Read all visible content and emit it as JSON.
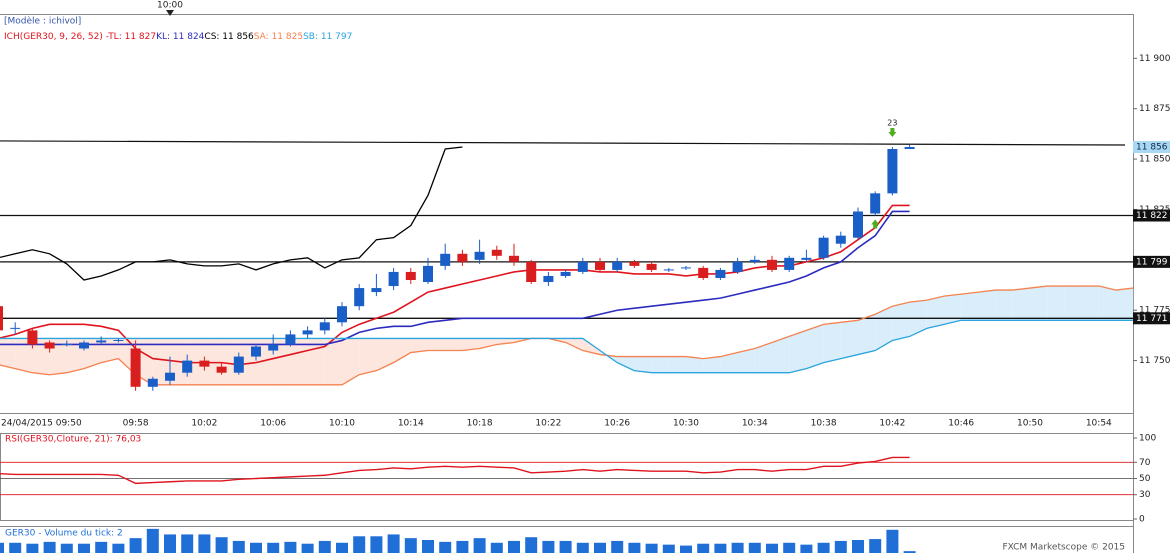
{
  "chart_data": [
    {
      "type": "candlestick",
      "model": "[Modèle : ichivol]",
      "indicator": "ICH(GER30, 9, 26, 52) -",
      "categories": [
        "24/04/2015 09:50",
        null,
        null,
        null,
        null,
        null,
        null,
        null,
        "09:58",
        null,
        null,
        null,
        "10:02",
        null,
        null,
        null,
        "10:06",
        null,
        null,
        null,
        "10:10",
        null,
        null,
        null,
        "10:14",
        null,
        null,
        null,
        "10:18",
        null,
        null,
        null,
        "10:22",
        null,
        null,
        null,
        "10:26",
        null,
        null,
        null,
        "10:30",
        null,
        null,
        null,
        "10:34",
        null,
        null,
        null,
        "10:38",
        null,
        null,
        null,
        "10:42",
        null,
        null,
        null,
        "10:46",
        null,
        null,
        null,
        "10:50",
        null,
        null,
        null,
        "10:54",
        null,
        null
      ],
      "marker": {
        "x": 10,
        "label": "10:00"
      },
      "annotation": {
        "x": 52,
        "text": 23
      },
      "open": [
        11777,
        11766,
        11765,
        11759,
        11758,
        11756,
        11759,
        11760,
        11756,
        11737,
        11740,
        11744,
        11750,
        11747,
        11744,
        11752,
        11755,
        11758,
        11763,
        11765,
        11769,
        11777,
        11784,
        11787,
        11794,
        11789,
        11797,
        11803,
        11800,
        11805,
        11802,
        11799,
        11789,
        11792,
        11794,
        11799,
        11795,
        11799,
        11798,
        11795,
        11796,
        11796,
        11791,
        11794,
        11799,
        11800,
        11795,
        11800,
        11801,
        11808,
        11811,
        11823,
        11833,
        11855,
        null,
        null,
        null,
        null,
        null,
        null,
        null,
        null,
        null,
        null,
        null,
        null,
        null
      ],
      "high": [
        11785,
        11769,
        11766,
        11760,
        11760,
        11760,
        11762,
        11761,
        11760,
        11742,
        11752,
        11753,
        11752,
        11749,
        11754,
        11758,
        11763,
        11765,
        11767,
        11771,
        11779,
        11788,
        11793,
        11796,
        11796,
        11801,
        11808,
        11805,
        11810,
        11807,
        11808,
        11800,
        11794,
        11795,
        11801,
        11801,
        11801,
        11800,
        11799,
        11796,
        11797,
        11797,
        11796,
        11801,
        11802,
        11802,
        11802,
        11805,
        11812,
        11814,
        11826,
        11834,
        11856,
        11857,
        null,
        null,
        null,
        null,
        null,
        null,
        null,
        null,
        null,
        null,
        null,
        null,
        null
      ],
      "low": [
        11762,
        11763,
        11756,
        11754,
        11757,
        11755,
        11758,
        11759,
        11735,
        11735,
        11738,
        11742,
        11745,
        11743,
        11743,
        11750,
        11753,
        11757,
        11761,
        11763,
        11767,
        11775,
        11782,
        11785,
        11788,
        11788,
        11795,
        11797,
        11798,
        11800,
        11797,
        11788,
        11787,
        11791,
        11793,
        11794,
        11794,
        11796,
        11794,
        11794,
        11795,
        11790,
        11790,
        11793,
        11798,
        11794,
        11794,
        11799,
        11800,
        11806,
        11810,
        11822,
        11832,
        11855,
        null,
        null,
        null,
        null,
        null,
        null,
        null,
        null,
        null,
        null,
        null,
        null,
        null
      ],
      "close": [
        11765,
        11766,
        11758,
        11756,
        11758,
        11759,
        11760,
        11760,
        11737,
        11741,
        11744,
        11750,
        11747,
        11744,
        11752,
        11757,
        11758,
        11763,
        11765,
        11769,
        11777,
        11786,
        11786,
        11794,
        11790,
        11797,
        11803,
        11799,
        11804,
        11802,
        11799,
        11789,
        11792,
        11794,
        11799,
        11795,
        11799,
        11797,
        11795,
        11795,
        11796,
        11791,
        11795,
        11799,
        11800,
        11795,
        11801,
        11801,
        11811,
        11812,
        11824,
        11833,
        11855,
        11856,
        null,
        null,
        null,
        null,
        null,
        null,
        null,
        null,
        null,
        null,
        null,
        null,
        null
      ],
      "up_color": "#1a5fc8",
      "down_color": "#d81e1e",
      "series": [
        {
          "name": "TL: 11 827",
          "color": "#e0141e",
          "values": [
            11761,
            11763,
            11766,
            11768,
            11768,
            11768,
            11767,
            11765,
            11756,
            11751,
            11750,
            11749,
            11749,
            11749,
            11748,
            11749,
            11751,
            11753,
            11755,
            11757,
            11764,
            11768,
            11771,
            11774,
            11779,
            11784,
            11786,
            11788,
            11790,
            11792,
            11794,
            11795,
            11795,
            11795,
            11795,
            11794,
            11794,
            11793,
            11793,
            11793,
            11792,
            11793,
            11793,
            11794,
            11796,
            11797,
            11797,
            11799,
            11801,
            11804,
            11810,
            11816,
            11827,
            11827,
            null,
            null,
            null,
            null,
            null,
            null,
            null,
            null,
            null,
            null,
            null,
            null,
            null
          ]
        },
        {
          "name": "KL: 11 824",
          "color": "#2b2bc0",
          "values": [
            11758,
            11758,
            11758,
            11758,
            11758,
            11758,
            11758,
            11758,
            11758,
            11758,
            11758,
            11758,
            11758,
            11758,
            11758,
            11758,
            11758,
            11758,
            11758,
            11758,
            11760,
            11764,
            11766,
            11767,
            11767,
            11769,
            11770,
            11771,
            11771,
            11771,
            11771,
            11771,
            11771,
            11771,
            11771,
            11773,
            11775,
            11776,
            11777,
            11778,
            11779,
            11780,
            11781,
            11783,
            11785,
            11787,
            11789,
            11792,
            11796,
            11799,
            11806,
            11812,
            11824,
            11824,
            null,
            null,
            null,
            null,
            null,
            null,
            null,
            null,
            null,
            null,
            null,
            null,
            null
          ]
        },
        {
          "name": "CS: 11 856",
          "color": "#000000",
          "values": [
            11801,
            11803,
            11805,
            11803,
            11798,
            11790,
            11792,
            11795,
            11799,
            11799,
            11800,
            11798,
            11797,
            11797,
            11798,
            11795,
            11798,
            11800,
            11801,
            11796,
            11800,
            11801,
            11810,
            11811,
            11817,
            11832,
            11855,
            11856,
            null,
            null,
            null,
            null,
            null,
            null,
            null,
            null,
            null,
            null,
            null,
            null,
            null,
            null,
            null,
            null,
            null,
            null,
            null,
            null,
            null,
            null,
            null,
            null,
            null,
            null,
            null,
            null,
            null,
            null,
            null,
            null,
            null,
            null,
            null,
            null,
            null,
            null,
            null
          ]
        },
        {
          "name": "SA: 11 825",
          "color": "#f5824f",
          "values": [
            11748,
            11746,
            11744,
            11743,
            11744,
            11746,
            11749,
            11751,
            11743,
            11738,
            11738,
            11738,
            11738,
            11738,
            11738,
            11738,
            11738,
            11738,
            11738,
            11738,
            11738,
            11743,
            11745,
            11749,
            11754,
            11755,
            11755,
            11755,
            11756,
            11758,
            11759,
            11761,
            11761,
            11759,
            11755,
            11753,
            11752,
            11752,
            11752,
            11752,
            11752,
            11751,
            11752,
            11754,
            11756,
            11759,
            11762,
            11765,
            11768,
            11769,
            11770,
            11773,
            11777,
            11779,
            11780,
            11782,
            11783,
            11784,
            11785,
            11785,
            11786,
            11787,
            11787,
            11787,
            11787,
            11785,
            11786
          ]
        },
        {
          "name": "SB: 11 797",
          "color": "#2aa4de",
          "values": [
            11761,
            11761,
            11761,
            11761,
            11761,
            11761,
            11761,
            11761,
            11761,
            11761,
            11761,
            11761,
            11761,
            11761,
            11761,
            11761,
            11761,
            11761,
            11761,
            11761,
            11761,
            11761,
            11761,
            11761,
            11761,
            11761,
            11761,
            11761,
            11761,
            11761,
            11761,
            11761,
            11761,
            11761,
            11761,
            11755,
            11749,
            11745,
            11744,
            11744,
            11744,
            11744,
            11744,
            11744,
            11744,
            11744,
            11744,
            11746,
            11749,
            11751,
            11753,
            11755,
            11760,
            11762,
            11766,
            11768,
            11770,
            11770,
            11770,
            11770,
            11770,
            11770,
            11770,
            11770,
            11770,
            11770,
            11770
          ]
        }
      ],
      "cloud_colors": {
        "up": "#d9eefa",
        "down": "#fde6de"
      },
      "trendline": {
        "start": 11859,
        "end": 11857
      },
      "levels": [
        {
          "value": 11822,
          "label": "11 822"
        },
        {
          "value": 11799,
          "label": "11 799"
        },
        {
          "value": 11771,
          "label": "11 771"
        }
      ],
      "current": {
        "value": 11856,
        "label": "11 856"
      },
      "ylim": [
        11724,
        11922
      ],
      "yticks": [
        {
          "value": 11900,
          "label": "11 900"
        },
        {
          "value": 11875,
          "label": "11 875"
        },
        {
          "value": 11850,
          "label": "11 850"
        },
        {
          "value": 11825,
          "label": "11 825"
        },
        {
          "value": 11800,
          "label": "11 800"
        },
        {
          "value": 11775,
          "label": "11 775"
        },
        {
          "value": 11750,
          "label": "11 750"
        }
      ]
    },
    {
      "type": "line",
      "label": "RSI(GER30,Cloture, 21): 76,03",
      "color": "#e0141e",
      "values": [
        56,
        55,
        55,
        55,
        55,
        55,
        55,
        54,
        44,
        45,
        46,
        47,
        47,
        47,
        49,
        50,
        51,
        52,
        53,
        54,
        57,
        60,
        61,
        63,
        62,
        64,
        65,
        64,
        65,
        64,
        63,
        57,
        58,
        59,
        61,
        59,
        61,
        60,
        59,
        59,
        59,
        57,
        58,
        61,
        61,
        59,
        61,
        61,
        65,
        65,
        69,
        71,
        76,
        76.03
      ],
      "ylim": [
        0,
        100
      ],
      "yticks": [
        100,
        70,
        50,
        30,
        0
      ],
      "levels": [
        {
          "value": 70,
          "color": "#e0141e"
        },
        {
          "value": 50,
          "color": "#444444"
        },
        {
          "value": 30,
          "color": "#e0141e"
        }
      ]
    },
    {
      "type": "bar",
      "label": "GER30 - Volume du tick: 2",
      "color": "#1f6fd6",
      "values": [
        11,
        11,
        10,
        12,
        10,
        10,
        12,
        10,
        16,
        26,
        20,
        20,
        20,
        17,
        13,
        11,
        11,
        12,
        10,
        13,
        11,
        18,
        18,
        20,
        16,
        14,
        12,
        13,
        16,
        11,
        13,
        17,
        13,
        13,
        11,
        11,
        13,
        11,
        10,
        9,
        8,
        10,
        10,
        11,
        11,
        10,
        11,
        9,
        11,
        13,
        14,
        15,
        25,
        2
      ],
      "ylim": [
        0,
        28
      ]
    }
  ],
  "footer": "FXCM Marketscope © 2015"
}
